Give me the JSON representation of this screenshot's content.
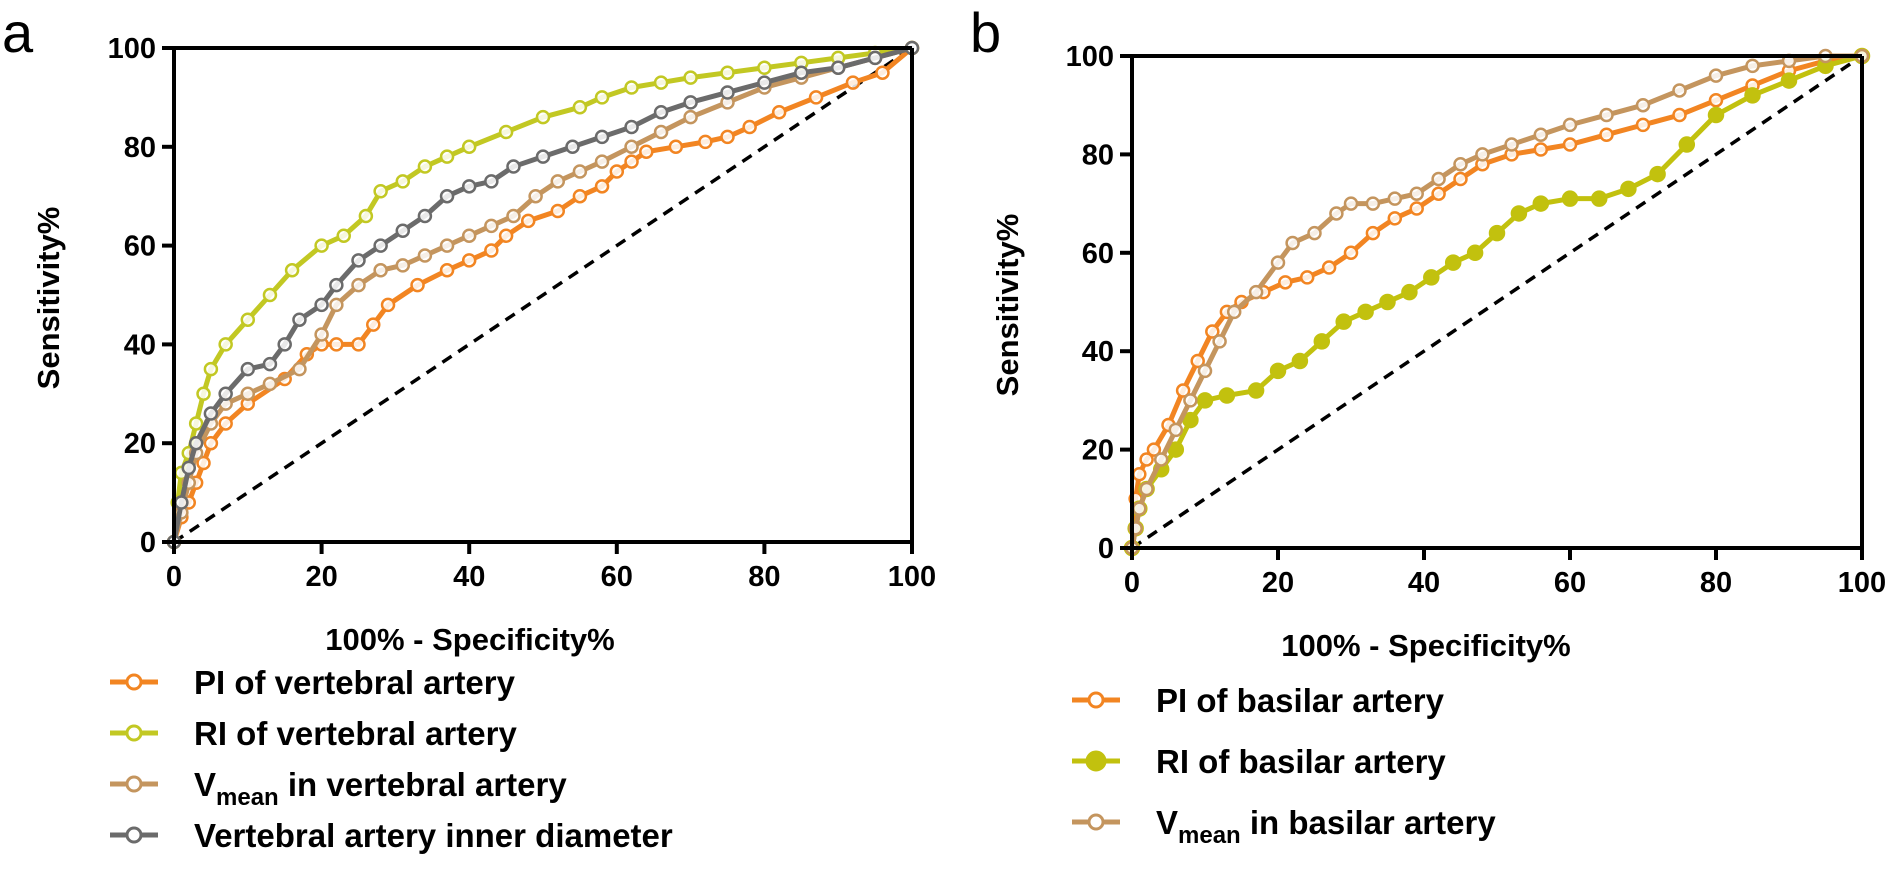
{
  "chart_data": [
    {
      "panel": "a",
      "type": "line",
      "xlabel": "100% - Specificity%",
      "ylabel": "Sensitivity%",
      "xlim": [
        0,
        100
      ],
      "ylim": [
        0,
        100
      ],
      "xticks": [
        "0",
        "20",
        "40",
        "60",
        "80",
        "100"
      ],
      "yticks": [
        "0",
        "20",
        "40",
        "60",
        "80",
        "100"
      ],
      "legend_position": "below",
      "reference_line": {
        "style": "dashed",
        "from": [
          0,
          0
        ],
        "to": [
          100,
          100
        ]
      },
      "series": [
        {
          "name": "PI of vertebral artery",
          "name_main": "PI of vertebral artery",
          "name_sub": "",
          "name_rest": "",
          "color": "#F28522",
          "marker": "open-circle",
          "x": [
            0,
            1,
            2,
            3,
            4,
            5,
            7,
            10,
            15,
            18,
            20,
            22,
            25,
            27,
            29,
            33,
            37,
            40,
            43,
            45,
            48,
            52,
            55,
            58,
            60,
            62,
            64,
            68,
            72,
            75,
            78,
            82,
            87,
            92,
            96,
            100
          ],
          "y": [
            0,
            5,
            8,
            12,
            16,
            20,
            24,
            28,
            33,
            38,
            40,
            40,
            40,
            44,
            48,
            52,
            55,
            57,
            59,
            62,
            65,
            67,
            70,
            72,
            75,
            77,
            79,
            80,
            81,
            82,
            84,
            87,
            90,
            93,
            95,
            100
          ]
        },
        {
          "name": "RI of vertebral artery",
          "name_main": "RI of vertebral artery",
          "name_sub": "",
          "name_rest": "",
          "color": "#C2C823",
          "marker": "open-circle",
          "x": [
            0,
            0.5,
            1,
            2,
            3,
            4,
            5,
            7,
            10,
            13,
            16,
            20,
            23,
            26,
            28,
            31,
            34,
            37,
            40,
            45,
            50,
            55,
            58,
            62,
            66,
            70,
            75,
            80,
            85,
            90,
            95,
            100
          ],
          "y": [
            0,
            8,
            14,
            18,
            24,
            30,
            35,
            40,
            45,
            50,
            55,
            60,
            62,
            66,
            71,
            73,
            76,
            78,
            80,
            83,
            86,
            88,
            90,
            92,
            93,
            94,
            95,
            96,
            97,
            98,
            99,
            100
          ]
        },
        {
          "name": "Vmean in vertebral artery",
          "name_main": "V",
          "name_sub": "mean",
          "name_rest": " in vertebral artery",
          "color": "#C4955E",
          "marker": "open-circle",
          "x": [
            0,
            1,
            2,
            3,
            5,
            7,
            10,
            13,
            17,
            20,
            22,
            25,
            28,
            31,
            34,
            37,
            40,
            43,
            46,
            49,
            52,
            55,
            58,
            62,
            66,
            70,
            75,
            80,
            85,
            90,
            95,
            100
          ],
          "y": [
            0,
            6,
            12,
            18,
            24,
            28,
            30,
            32,
            35,
            42,
            48,
            52,
            55,
            56,
            58,
            60,
            62,
            64,
            66,
            70,
            73,
            75,
            77,
            80,
            83,
            86,
            89,
            92,
            94,
            96,
            98,
            100
          ]
        },
        {
          "name": "Vertebral artery inner diameter",
          "name_main": "Vertebral artery inner diameter",
          "name_sub": "",
          "name_rest": "",
          "color": "#6B6B6B",
          "marker": "open-circle",
          "x": [
            0,
            1,
            2,
            3,
            5,
            7,
            10,
            13,
            15,
            17,
            20,
            22,
            25,
            28,
            31,
            34,
            37,
            40,
            43,
            46,
            50,
            54,
            58,
            62,
            66,
            70,
            75,
            80,
            85,
            90,
            95,
            100
          ],
          "y": [
            0,
            8,
            15,
            20,
            26,
            30,
            35,
            36,
            40,
            45,
            48,
            52,
            57,
            60,
            63,
            66,
            70,
            72,
            73,
            76,
            78,
            80,
            82,
            84,
            87,
            89,
            91,
            93,
            95,
            96,
            98,
            100
          ]
        }
      ]
    },
    {
      "panel": "b",
      "type": "line",
      "xlabel": "100% - Specificity%",
      "ylabel": "Sensitivity%",
      "xlim": [
        0,
        100
      ],
      "ylim": [
        0,
        100
      ],
      "xticks": [
        "0",
        "20",
        "40",
        "60",
        "80",
        "100"
      ],
      "yticks": [
        "0",
        "20",
        "40",
        "60",
        "80",
        "100"
      ],
      "legend_position": "below",
      "reference_line": {
        "style": "dashed",
        "from": [
          0,
          0
        ],
        "to": [
          100,
          100
        ]
      },
      "series": [
        {
          "name": "PI of basilar artery",
          "name_main": "PI of basilar artery",
          "name_sub": "",
          "name_rest": "",
          "color": "#F28522",
          "marker": "open-circle",
          "x": [
            0,
            0.5,
            1,
            2,
            3,
            5,
            7,
            9,
            11,
            13,
            15,
            18,
            21,
            24,
            27,
            30,
            33,
            36,
            39,
            42,
            45,
            48,
            52,
            56,
            60,
            65,
            70,
            75,
            80,
            85,
            90,
            95,
            100
          ],
          "y": [
            0,
            10,
            15,
            18,
            20,
            25,
            32,
            38,
            44,
            48,
            50,
            52,
            54,
            55,
            57,
            60,
            64,
            67,
            69,
            72,
            75,
            78,
            80,
            81,
            82,
            84,
            86,
            88,
            91,
            94,
            97,
            99,
            100
          ]
        },
        {
          "name": "RI of basilar artery",
          "name_main": "RI of basilar artery",
          "name_sub": "",
          "name_rest": "",
          "color": "#C2C10E",
          "marker": "filled-circle",
          "x": [
            0,
            0.5,
            1,
            2,
            4,
            6,
            8,
            10,
            13,
            17,
            20,
            23,
            26,
            29,
            32,
            35,
            38,
            41,
            44,
            47,
            50,
            53,
            56,
            60,
            64,
            68,
            72,
            76,
            80,
            85,
            90,
            95,
            100
          ],
          "y": [
            0,
            4,
            8,
            12,
            16,
            20,
            26,
            30,
            31,
            32,
            36,
            38,
            42,
            46,
            48,
            50,
            52,
            55,
            58,
            60,
            64,
            68,
            70,
            71,
            71,
            73,
            76,
            82,
            88,
            92,
            95,
            98,
            100
          ]
        },
        {
          "name": "Vmean in basilar artery",
          "name_main": "V",
          "name_sub": "mean",
          "name_rest": " in basilar artery",
          "color": "#C4955E",
          "marker": "open-circle",
          "x": [
            0,
            0.5,
            1,
            2,
            4,
            6,
            8,
            10,
            12,
            14,
            17,
            20,
            22,
            25,
            28,
            30,
            33,
            36,
            39,
            42,
            45,
            48,
            52,
            56,
            60,
            65,
            70,
            75,
            80,
            85,
            90,
            95,
            100
          ],
          "y": [
            0,
            4,
            8,
            12,
            18,
            24,
            30,
            36,
            42,
            48,
            52,
            58,
            62,
            64,
            68,
            70,
            70,
            71,
            72,
            75,
            78,
            80,
            82,
            84,
            86,
            88,
            90,
            93,
            96,
            98,
            99,
            100,
            100
          ]
        }
      ]
    }
  ]
}
